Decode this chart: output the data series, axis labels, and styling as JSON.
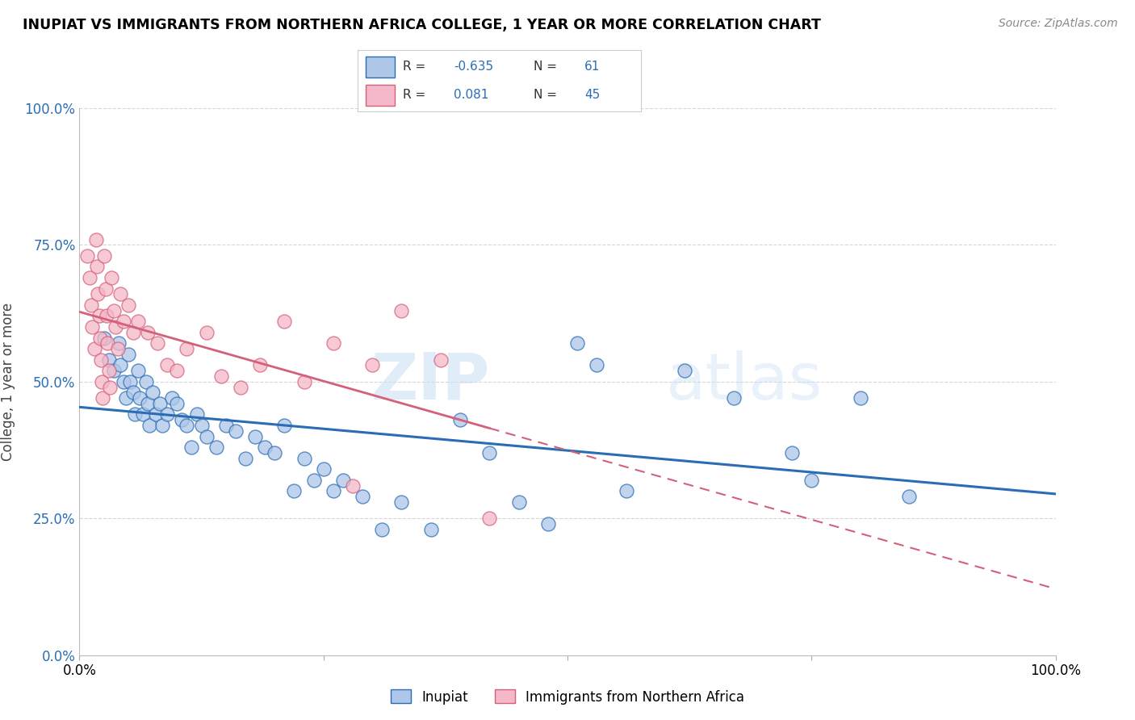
{
  "title": "INUPIAT VS IMMIGRANTS FROM NORTHERN AFRICA COLLEGE, 1 YEAR OR MORE CORRELATION CHART",
  "source": "Source: ZipAtlas.com",
  "ylabel": "College, 1 year or more",
  "ytick_labels": [
    "0.0%",
    "25.0%",
    "50.0%",
    "75.0%",
    "100.0%"
  ],
  "ytick_values": [
    0.0,
    0.25,
    0.5,
    0.75,
    1.0
  ],
  "xlim": [
    0.0,
    1.0
  ],
  "ylim": [
    0.0,
    1.0
  ],
  "R_blue": -0.635,
  "N_blue": 61,
  "R_pink": 0.081,
  "N_pink": 45,
  "color_blue": "#aec6e8",
  "color_pink": "#f4b8c8",
  "line_blue": "#2a6db5",
  "line_pink": "#d4607a",
  "legend_label_blue": "Inupiat",
  "legend_label_pink": "Immigrants from Northern Africa",
  "blue_points": [
    [
      0.025,
      0.58
    ],
    [
      0.03,
      0.54
    ],
    [
      0.035,
      0.52
    ],
    [
      0.04,
      0.57
    ],
    [
      0.042,
      0.53
    ],
    [
      0.045,
      0.5
    ],
    [
      0.048,
      0.47
    ],
    [
      0.05,
      0.55
    ],
    [
      0.052,
      0.5
    ],
    [
      0.055,
      0.48
    ],
    [
      0.057,
      0.44
    ],
    [
      0.06,
      0.52
    ],
    [
      0.062,
      0.47
    ],
    [
      0.065,
      0.44
    ],
    [
      0.068,
      0.5
    ],
    [
      0.07,
      0.46
    ],
    [
      0.072,
      0.42
    ],
    [
      0.075,
      0.48
    ],
    [
      0.078,
      0.44
    ],
    [
      0.082,
      0.46
    ],
    [
      0.085,
      0.42
    ],
    [
      0.09,
      0.44
    ],
    [
      0.095,
      0.47
    ],
    [
      0.1,
      0.46
    ],
    [
      0.105,
      0.43
    ],
    [
      0.11,
      0.42
    ],
    [
      0.115,
      0.38
    ],
    [
      0.12,
      0.44
    ],
    [
      0.125,
      0.42
    ],
    [
      0.13,
      0.4
    ],
    [
      0.14,
      0.38
    ],
    [
      0.15,
      0.42
    ],
    [
      0.16,
      0.41
    ],
    [
      0.17,
      0.36
    ],
    [
      0.18,
      0.4
    ],
    [
      0.19,
      0.38
    ],
    [
      0.2,
      0.37
    ],
    [
      0.21,
      0.42
    ],
    [
      0.22,
      0.3
    ],
    [
      0.23,
      0.36
    ],
    [
      0.24,
      0.32
    ],
    [
      0.25,
      0.34
    ],
    [
      0.26,
      0.3
    ],
    [
      0.27,
      0.32
    ],
    [
      0.29,
      0.29
    ],
    [
      0.31,
      0.23
    ],
    [
      0.33,
      0.28
    ],
    [
      0.36,
      0.23
    ],
    [
      0.39,
      0.43
    ],
    [
      0.42,
      0.37
    ],
    [
      0.45,
      0.28
    ],
    [
      0.48,
      0.24
    ],
    [
      0.51,
      0.57
    ],
    [
      0.53,
      0.53
    ],
    [
      0.56,
      0.3
    ],
    [
      0.62,
      0.52
    ],
    [
      0.67,
      0.47
    ],
    [
      0.73,
      0.37
    ],
    [
      0.75,
      0.32
    ],
    [
      0.8,
      0.47
    ],
    [
      0.85,
      0.29
    ]
  ],
  "pink_points": [
    [
      0.008,
      0.73
    ],
    [
      0.01,
      0.69
    ],
    [
      0.012,
      0.64
    ],
    [
      0.013,
      0.6
    ],
    [
      0.015,
      0.56
    ],
    [
      0.017,
      0.76
    ],
    [
      0.018,
      0.71
    ],
    [
      0.019,
      0.66
    ],
    [
      0.02,
      0.62
    ],
    [
      0.021,
      0.58
    ],
    [
      0.022,
      0.54
    ],
    [
      0.023,
      0.5
    ],
    [
      0.024,
      0.47
    ],
    [
      0.025,
      0.73
    ],
    [
      0.027,
      0.67
    ],
    [
      0.028,
      0.62
    ],
    [
      0.029,
      0.57
    ],
    [
      0.03,
      0.52
    ],
    [
      0.031,
      0.49
    ],
    [
      0.033,
      0.69
    ],
    [
      0.035,
      0.63
    ],
    [
      0.037,
      0.6
    ],
    [
      0.039,
      0.56
    ],
    [
      0.042,
      0.66
    ],
    [
      0.045,
      0.61
    ],
    [
      0.05,
      0.64
    ],
    [
      0.055,
      0.59
    ],
    [
      0.06,
      0.61
    ],
    [
      0.07,
      0.59
    ],
    [
      0.08,
      0.57
    ],
    [
      0.09,
      0.53
    ],
    [
      0.1,
      0.52
    ],
    [
      0.11,
      0.56
    ],
    [
      0.13,
      0.59
    ],
    [
      0.145,
      0.51
    ],
    [
      0.165,
      0.49
    ],
    [
      0.185,
      0.53
    ],
    [
      0.21,
      0.61
    ],
    [
      0.23,
      0.5
    ],
    [
      0.26,
      0.57
    ],
    [
      0.28,
      0.31
    ],
    [
      0.3,
      0.53
    ],
    [
      0.33,
      0.63
    ],
    [
      0.37,
      0.54
    ],
    [
      0.42,
      0.25
    ]
  ]
}
